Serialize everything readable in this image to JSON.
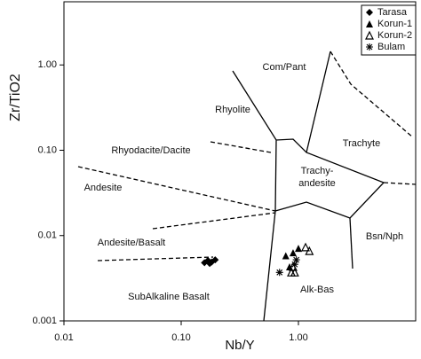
{
  "chart_data": {
    "type": "scatter",
    "x_label": "Nb/Y",
    "y_label": "Zr/TiO2",
    "xscale": "log",
    "yscale": "log",
    "xlim": [
      0.01,
      10
    ],
    "ylim": [
      0.001,
      5.5
    ],
    "xticks": [
      0.01,
      {
        "value": 0.1,
        "label": "0.10"
      },
      {
        "value": 1,
        "label": "1.00"
      }
    ],
    "yticks": [
      0.001,
      0.01,
      {
        "value": 0.1,
        "label": "0.10"
      },
      {
        "value": 1,
        "label": "1.00"
      }
    ],
    "legend": "upper right",
    "annotations": [
      "Com/Pant",
      "Rhyolite",
      "Trachyte",
      "Rhyodacite/Dacite",
      "Trachy-",
      "andesite",
      "Andesite",
      "Andesite/Basalt",
      "Bsn/Nph",
      "SubAlkaline Basalt",
      "Alk-Bas"
    ],
    "series": [
      {
        "name": "Tarasa",
        "marker": "diamond",
        "color": "#000000",
        "x": [
          0.158,
          0.169,
          0.182,
          0.195,
          0.175
        ],
        "y": [
          0.0048,
          0.0051,
          0.0049,
          0.0052,
          0.0047
        ]
      },
      {
        "name": "Korun-1",
        "marker": "triangle",
        "color": "#000000",
        "x": [
          0.78,
          0.9,
          0.84,
          1.0
        ],
        "y": [
          0.0058,
          0.0063,
          0.0043,
          0.0071
        ]
      },
      {
        "name": "Korun-2",
        "marker": "triangle-open",
        "color": "#000000",
        "x": [
          0.87,
          0.93,
          1.15,
          1.24,
          0.9
        ],
        "y": [
          0.0037,
          0.0037,
          0.0073,
          0.0066,
          0.0043
        ]
      },
      {
        "name": "Bulam",
        "marker": "asterisk",
        "color": "#000000",
        "x": [
          0.69,
          0.93,
          0.96
        ],
        "y": [
          0.0037,
          0.0046,
          0.0052
        ]
      }
    ]
  }
}
